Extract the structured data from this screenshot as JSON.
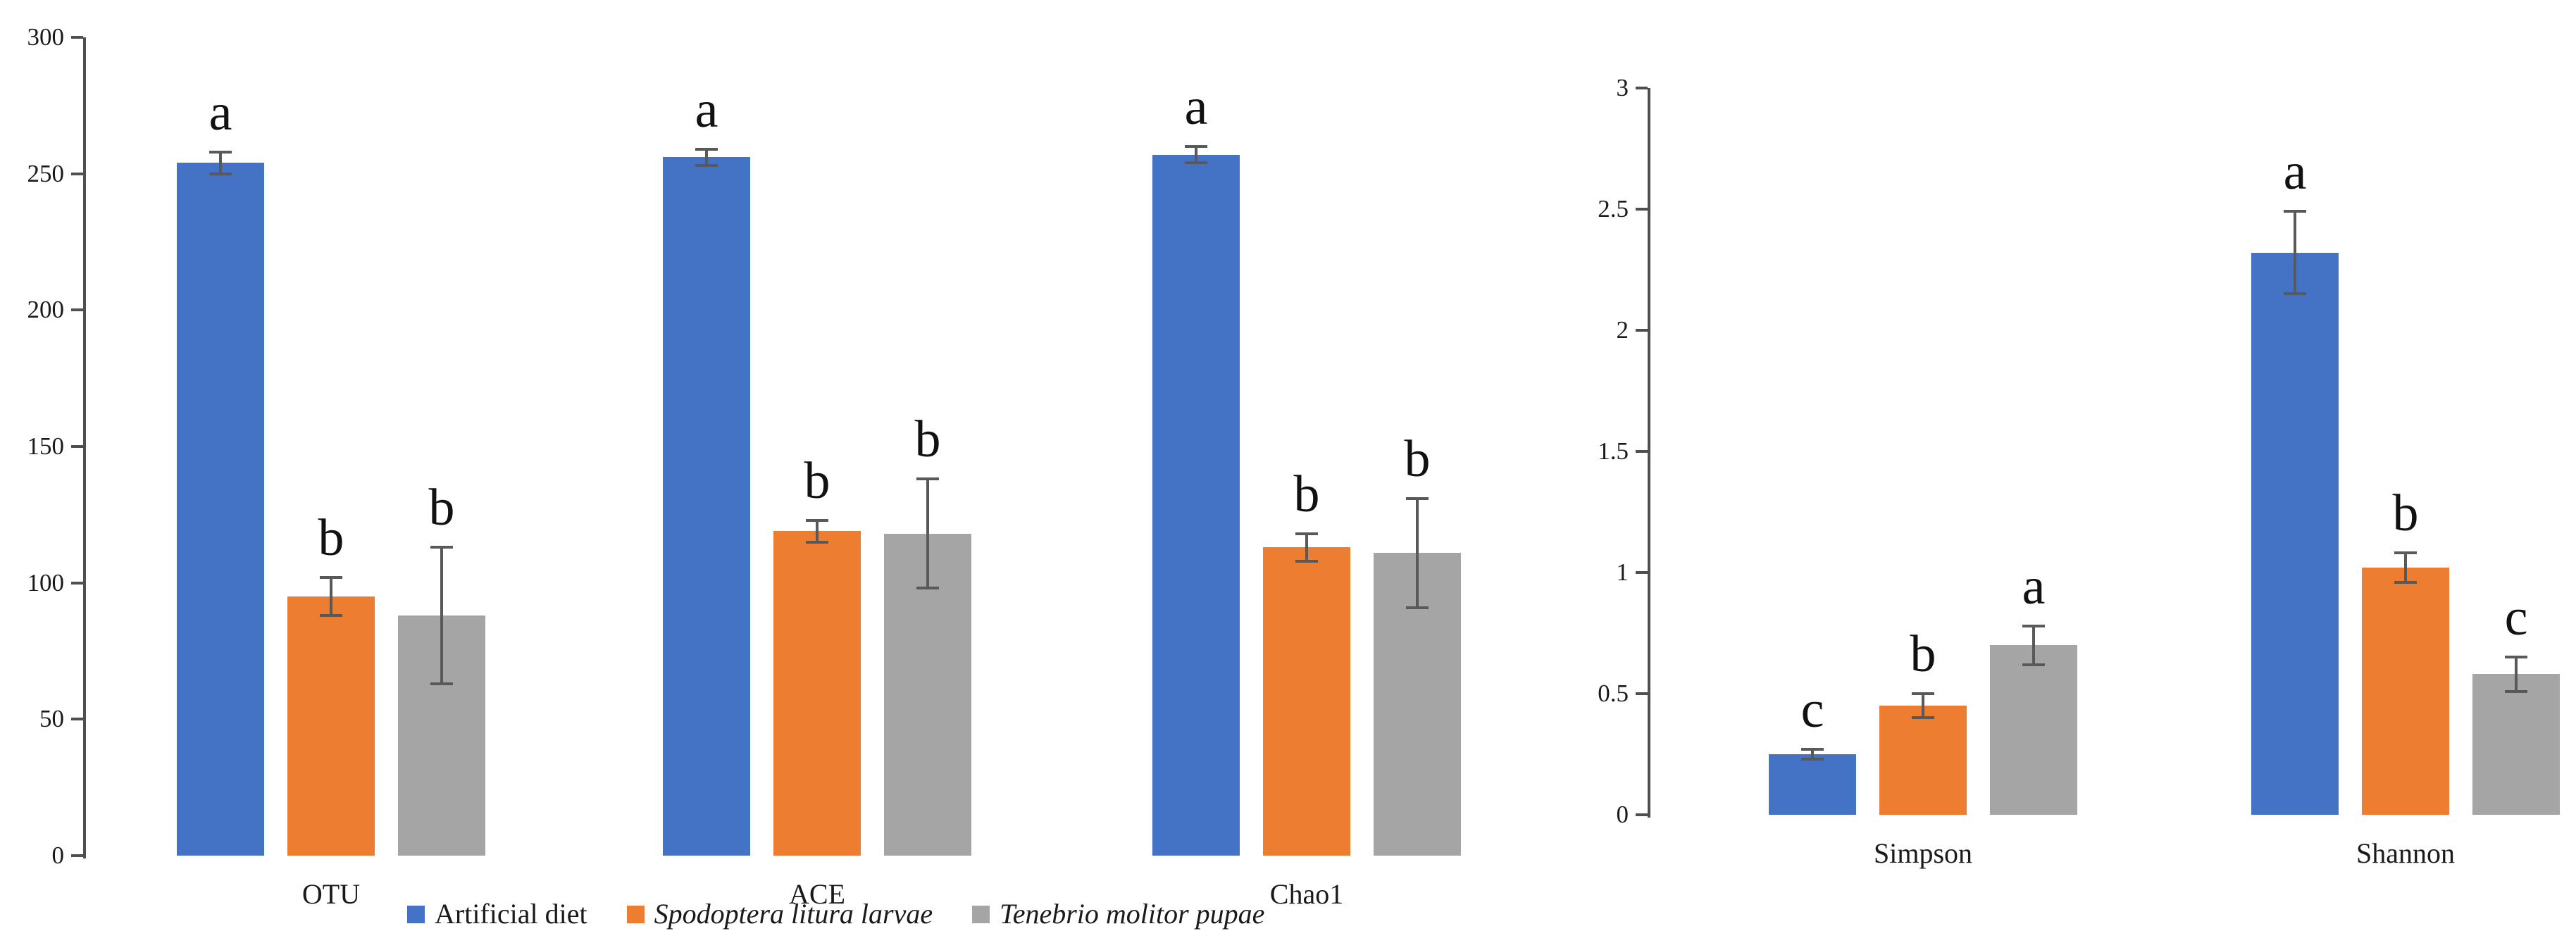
{
  "figure": {
    "description": "Two-panel grouped bar chart of alpha diversity indices with error bars and significance letters"
  },
  "colors": {
    "series_blue": "#4472C4",
    "series_orange": "#ED7D31",
    "series_gray": "#A5A5A5",
    "error_bar": "#58595B",
    "axis": "#4F4F4F",
    "text": "#1A1A1A"
  },
  "legend": {
    "items": [
      {
        "label": "Artificial diet",
        "color": "#4472C4",
        "italic": false,
        "swatch": "blue-legend-swatch"
      },
      {
        "label": "Spodoptera litura larvae",
        "color": "#ED7D31",
        "italic": true,
        "swatch": "orange-legend-swatch"
      },
      {
        "label": "Tenebrio molitor pupae",
        "color": "#A5A5A5",
        "italic": true,
        "swatch": "gray-legend-swatch"
      }
    ]
  },
  "chart_data": [
    {
      "type": "bar",
      "panel": "richness-indices",
      "title": "",
      "xlabel": "",
      "ylabel": "",
      "ylim": [
        0,
        300
      ],
      "ytick_step": 50,
      "yticks": [
        "300",
        "250",
        "200",
        "150",
        "100",
        "50",
        "0"
      ],
      "grid": false,
      "legend_position": "bottom",
      "categories": [
        "OTU",
        "ACE",
        "Chao1"
      ],
      "series": [
        {
          "name": "Artificial diet",
          "color_key": "series_blue",
          "values": [
            254,
            256,
            257
          ],
          "errors": [
            4,
            3,
            3
          ],
          "letters": [
            "a",
            "a",
            "a"
          ]
        },
        {
          "name": "Spodoptera litura larvae",
          "color_key": "series_orange",
          "values": [
            95,
            119,
            113
          ],
          "errors": [
            7,
            4,
            5
          ],
          "letters": [
            "b",
            "b",
            "b"
          ]
        },
        {
          "name": "Tenebrio molitor pupae",
          "color_key": "series_gray",
          "values": [
            88,
            118,
            111
          ],
          "errors": [
            25,
            20,
            20
          ],
          "letters": [
            "b",
            "b",
            "b"
          ]
        }
      ]
    },
    {
      "type": "bar",
      "panel": "diversity-indices",
      "title": "",
      "xlabel": "",
      "ylabel": "",
      "ylim": [
        0,
        3
      ],
      "ytick_step": 0.5,
      "yticks": [
        "3",
        "2.5",
        "2",
        "1.5",
        "1",
        "0.5",
        "0"
      ],
      "grid": false,
      "legend_position": "bottom",
      "categories": [
        "Simpson",
        "Shannon"
      ],
      "series": [
        {
          "name": "Artificial diet",
          "color_key": "series_blue",
          "values": [
            0.25,
            2.32
          ],
          "errors": [
            0.02,
            0.17
          ],
          "letters": [
            "c",
            "a"
          ]
        },
        {
          "name": "Spodoptera litura larvae",
          "color_key": "series_orange",
          "values": [
            0.45,
            1.02
          ],
          "errors": [
            0.05,
            0.06
          ],
          "letters": [
            "b",
            "b"
          ]
        },
        {
          "name": "Tenebrio molitor pupae",
          "color_key": "series_gray",
          "values": [
            0.7,
            0.58
          ],
          "errors": [
            0.08,
            0.07
          ],
          "letters": [
            "a",
            "c"
          ]
        }
      ]
    }
  ]
}
